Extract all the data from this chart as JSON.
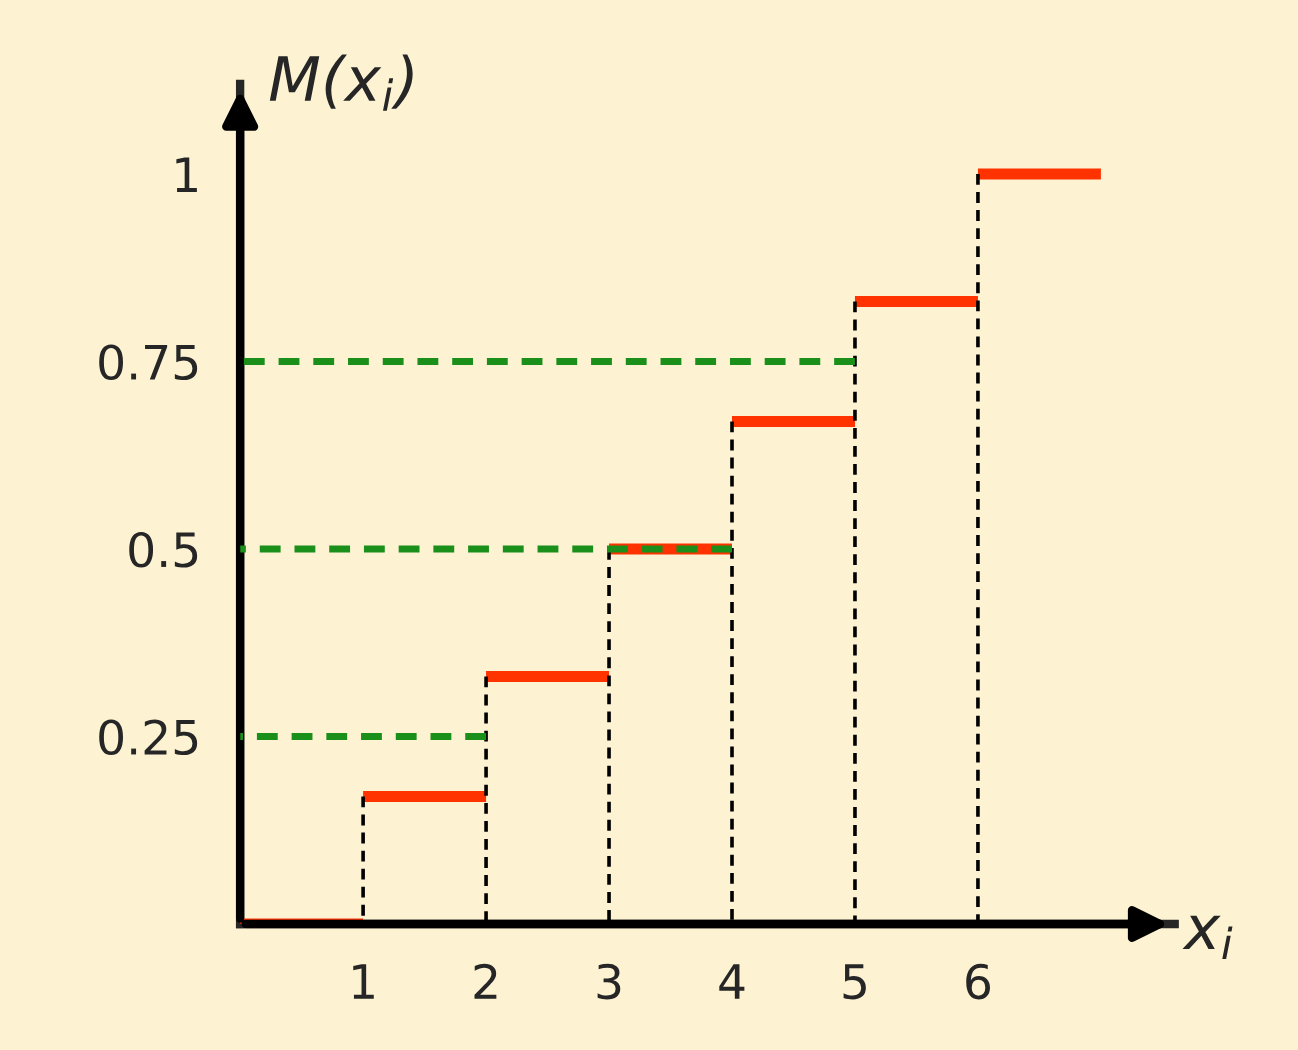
{
  "chart_data": {
    "type": "line",
    "xlabel": "x$_{i}$",
    "ylabel": "M(x$_{i}$)",
    "xlim": [
      0,
      7.6
    ],
    "ylim": [
      0,
      1.12
    ],
    "xticks": [
      1,
      2,
      3,
      4,
      5,
      6
    ],
    "yticks": [
      0.25,
      0.5,
      0.75,
      1
    ],
    "series": [
      {
        "color": "#ff3300",
        "x": [
          0,
          1
        ],
        "values": [
          0,
          0
        ]
      },
      {
        "color": "#ff3300",
        "x": [
          1,
          2
        ],
        "values": [
          0.17,
          0.17
        ]
      },
      {
        "color": "#ff3300",
        "x": [
          2,
          3
        ],
        "values": [
          0.33,
          0.33
        ]
      },
      {
        "color": "#ff3300",
        "x": [
          3,
          4
        ],
        "values": [
          0.5,
          0.5
        ]
      },
      {
        "color": "#ff3300",
        "x": [
          4,
          5
        ],
        "values": [
          0.67,
          0.67
        ]
      },
      {
        "color": "#ff3300",
        "x": [
          5,
          6
        ],
        "values": [
          0.83,
          0.83
        ]
      },
      {
        "color": "#ff3300",
        "x": [
          6,
          7
        ],
        "values": [
          1,
          1
        ]
      },
      {
        "color": "#000000",
        "line_style": "dashed",
        "x": [
          1,
          1
        ],
        "values": [
          0,
          0.17
        ]
      },
      {
        "color": "#000000",
        "line_style": "dashed",
        "x": [
          2,
          2
        ],
        "values": [
          0,
          0.33
        ]
      },
      {
        "color": "#000000",
        "line_style": "dashed",
        "x": [
          3,
          3
        ],
        "values": [
          0,
          0.5
        ]
      },
      {
        "color": "#000000",
        "line_style": "dashed",
        "x": [
          4,
          4
        ],
        "values": [
          0,
          0.67
        ]
      },
      {
        "color": "#000000",
        "line_style": "dashed",
        "x": [
          5,
          5
        ],
        "values": [
          0,
          0.83
        ]
      },
      {
        "color": "#000000",
        "line_style": "dashed",
        "x": [
          6,
          6
        ],
        "values": [
          0,
          1
        ]
      },
      {
        "color": "#1a8f1a",
        "line_style": "dashed",
        "x": [
          0,
          2
        ],
        "values": [
          0.25,
          0.25
        ]
      },
      {
        "color": "#1a8f1a",
        "line_style": "dashed",
        "x": [
          0,
          4
        ],
        "values": [
          0.5,
          0.5
        ]
      },
      {
        "color": "#1a8f1a",
        "line_style": "dashed",
        "x": [
          0,
          5
        ],
        "values": [
          0.75,
          0.75
        ]
      }
    ]
  }
}
